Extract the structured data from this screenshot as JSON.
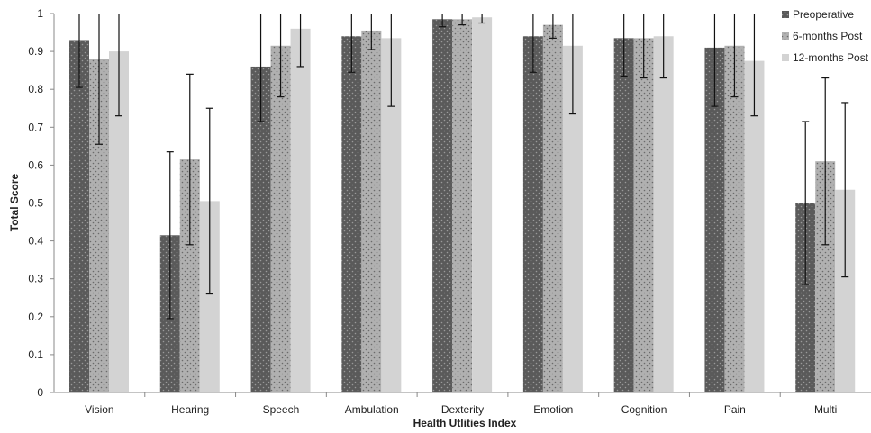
{
  "chart_data": {
    "type": "bar",
    "xlabel": "Health Utlities Index",
    "ylabel": "Total Score",
    "ylim": [
      0,
      1
    ],
    "yticks": [
      "0",
      "0.1",
      "0.2",
      "0.3",
      "0.4",
      "0.5",
      "0.6",
      "0.7",
      "0.8",
      "0.9",
      "1"
    ],
    "categories": [
      "Vision",
      "Hearing",
      "Speech",
      "Ambulation",
      "Dexterity",
      "Emotion",
      "Cognition",
      "Pain",
      "Multi"
    ],
    "legend_position": "top-right",
    "grid": false,
    "series": [
      {
        "name": "Preoperative",
        "color": "#5a5a5a",
        "pattern": "dots",
        "values": [
          0.93,
          0.415,
          0.86,
          0.94,
          0.985,
          0.94,
          0.935,
          0.91,
          0.5
        ],
        "error": [
          0.125,
          0.22,
          0.145,
          0.095,
          0.02,
          0.095,
          0.1,
          0.155,
          0.215
        ]
      },
      {
        "name": "6-months Post",
        "color": "#a6a6a6",
        "pattern": "dots",
        "values": [
          0.88,
          0.615,
          0.915,
          0.955,
          0.985,
          0.97,
          0.935,
          0.915,
          0.61
        ],
        "error": [
          0.225,
          0.225,
          0.135,
          0.05,
          0.015,
          0.035,
          0.105,
          0.135,
          0.22
        ]
      },
      {
        "name": "12-months Post",
        "color": "#d3d3d3",
        "pattern": "solid",
        "values": [
          0.9,
          0.505,
          0.96,
          0.935,
          0.99,
          0.915,
          0.94,
          0.875,
          0.535
        ],
        "error": [
          0.17,
          0.245,
          0.1,
          0.18,
          0.015,
          0.18,
          0.11,
          0.145,
          0.23
        ]
      }
    ]
  }
}
